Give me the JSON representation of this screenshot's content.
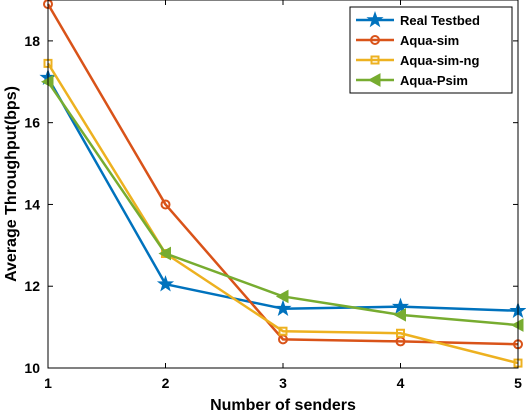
{
  "chart_data": {
    "type": "line",
    "xlabel": "Number of senders",
    "ylabel": "Average Throughput(bps)",
    "x": [
      1,
      2,
      3,
      4,
      5
    ],
    "xticks": [
      "1",
      "2",
      "3",
      "4",
      "5"
    ],
    "xlim": [
      1,
      5
    ],
    "yticks": [
      "10",
      "12",
      "14",
      "16",
      "18"
    ],
    "ylim": [
      10,
      19
    ],
    "grid": false,
    "legend_position": "top-right",
    "series": [
      {
        "name": "Real Testbed",
        "color": "#0072BD",
        "marker": "star",
        "values": [
          17.1,
          12.05,
          11.45,
          11.5,
          11.4
        ]
      },
      {
        "name": "Aqua-sim",
        "color": "#D95319",
        "marker": "circle",
        "values": [
          18.9,
          14.0,
          10.7,
          10.65,
          10.58
        ]
      },
      {
        "name": "Aqua-sim-ng",
        "color": "#EDB120",
        "marker": "square",
        "values": [
          17.45,
          12.8,
          10.9,
          10.85,
          10.12
        ]
      },
      {
        "name": "Aqua-Psim",
        "color": "#77AC30",
        "marker": "triangle-left",
        "values": [
          17.0,
          12.8,
          11.75,
          11.3,
          11.05
        ]
      }
    ]
  }
}
